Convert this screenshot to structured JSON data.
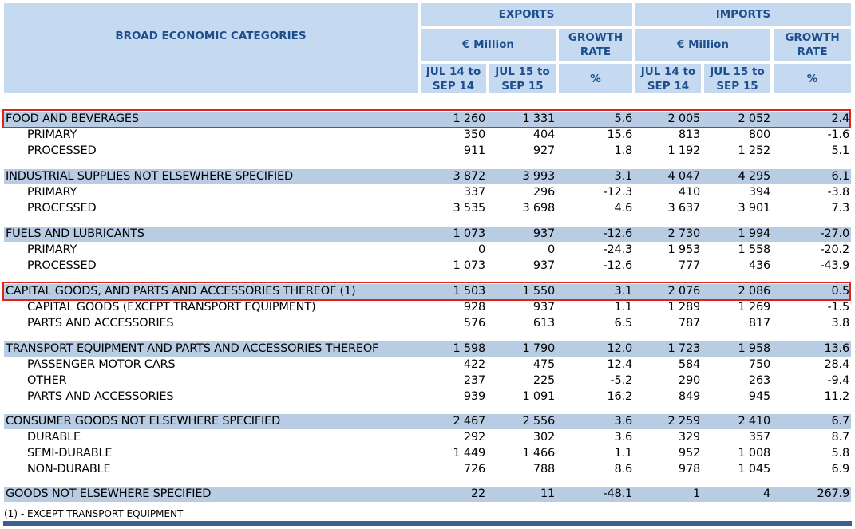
{
  "header": {
    "category_title": "BROAD ECONOMIC CATEGORIES",
    "exports": "EXPORTS",
    "imports": "IMPORTS",
    "million": "€ Million",
    "growth_line1": "GROWTH",
    "growth_line2": "RATE",
    "p1_line1": "JUL 14 to",
    "p1_line2": "SEP 14",
    "p2_line1": "JUL 15 to",
    "p2_line2": "SEP 15",
    "percent": "%"
  },
  "rows": [
    {
      "label": "FOOD AND BEVERAGES",
      "level": "cat",
      "v": [
        "1 260",
        "1 331",
        "5.6",
        "2 005",
        "2 052",
        "2.4"
      ]
    },
    {
      "label": "PRIMARY",
      "level": "sub",
      "v": [
        "350",
        "404",
        "15.6",
        "813",
        "800",
        "-1.6"
      ]
    },
    {
      "label": "PROCESSED",
      "level": "sub",
      "v": [
        "911",
        "927",
        "1.8",
        "1 192",
        "1 252",
        "5.1"
      ]
    },
    {
      "label": "INDUSTRIAL SUPPLIES NOT ELSEWHERE SPECIFIED",
      "level": "cat",
      "v": [
        "3 872",
        "3 993",
        "3.1",
        "4 047",
        "4 295",
        "6.1"
      ]
    },
    {
      "label": "PRIMARY",
      "level": "sub",
      "v": [
        "337",
        "296",
        "-12.3",
        "410",
        "394",
        "-3.8"
      ]
    },
    {
      "label": "PROCESSED",
      "level": "sub",
      "v": [
        "3 535",
        "3 698",
        "4.6",
        "3 637",
        "3 901",
        "7.3"
      ]
    },
    {
      "label": "FUELS AND LUBRICANTS",
      "level": "cat",
      "v": [
        "1 073",
        "937",
        "-12.6",
        "2 730",
        "1 994",
        "-27.0"
      ]
    },
    {
      "label": "PRIMARY",
      "level": "sub",
      "v": [
        "0",
        "0",
        "-24.3",
        "1 953",
        "1 558",
        "-20.2"
      ]
    },
    {
      "label": "PROCESSED",
      "level": "sub",
      "v": [
        "1 073",
        "937",
        "-12.6",
        "777",
        "436",
        "-43.9"
      ]
    },
    {
      "label": "CAPITAL GOODS, AND PARTS AND ACCESSORIES THEREOF (1)",
      "level": "cat",
      "v": [
        "1 503",
        "1 550",
        "3.1",
        "2 076",
        "2 086",
        "0.5"
      ]
    },
    {
      "label": "CAPITAL GOODS (EXCEPT TRANSPORT EQUIPMENT)",
      "level": "sub",
      "v": [
        "928",
        "937",
        "1.1",
        "1 289",
        "1 269",
        "-1.5"
      ]
    },
    {
      "label": "PARTS AND ACCESSORIES",
      "level": "sub",
      "v": [
        "576",
        "613",
        "6.5",
        "787",
        "817",
        "3.8"
      ]
    },
    {
      "label": "TRANSPORT EQUIPMENT AND PARTS AND ACCESSORIES THEREOF",
      "level": "cat",
      "v": [
        "1 598",
        "1 790",
        "12.0",
        "1 723",
        "1 958",
        "13.6"
      ]
    },
    {
      "label": "PASSENGER MOTOR CARS",
      "level": "sub",
      "v": [
        "422",
        "475",
        "12.4",
        "584",
        "750",
        "28.4"
      ]
    },
    {
      "label": "OTHER",
      "level": "sub",
      "v": [
        "237",
        "225",
        "-5.2",
        "290",
        "263",
        "-9.4"
      ]
    },
    {
      "label": "PARTS AND ACCESSORIES",
      "level": "sub",
      "v": [
        "939",
        "1 091",
        "16.2",
        "849",
        "945",
        "11.2"
      ]
    },
    {
      "label": "CONSUMER GOODS NOT ELSEWHERE SPECIFIED",
      "level": "cat",
      "v": [
        "2 467",
        "2 556",
        "3.6",
        "2 259",
        "2 410",
        "6.7"
      ]
    },
    {
      "label": "DURABLE",
      "level": "sub",
      "v": [
        "292",
        "302",
        "3.6",
        "329",
        "357",
        "8.7"
      ]
    },
    {
      "label": "SEMI-DURABLE",
      "level": "sub",
      "v": [
        "1 449",
        "1 466",
        "1.1",
        "952",
        "1 008",
        "5.8"
      ]
    },
    {
      "label": "NON-DURABLE",
      "level": "sub",
      "v": [
        "726",
        "788",
        "8.6",
        "978",
        "1 045",
        "6.9"
      ]
    },
    {
      "label": "GOODS NOT ELSEWHERE SPECIFIED",
      "level": "cat",
      "v": [
        "22",
        "11",
        "-48.1",
        "1",
        "4",
        "267.9"
      ]
    }
  ],
  "highlighted_rows": [
    0,
    9
  ],
  "footnote": "(1) - EXCEPT TRANSPORT EQUIPMENT",
  "colors": {
    "header_bg": "#c5d9f1",
    "header_text": "#1f4e8c",
    "category_bg": "#b8cce4",
    "highlight": "#e2231a"
  }
}
